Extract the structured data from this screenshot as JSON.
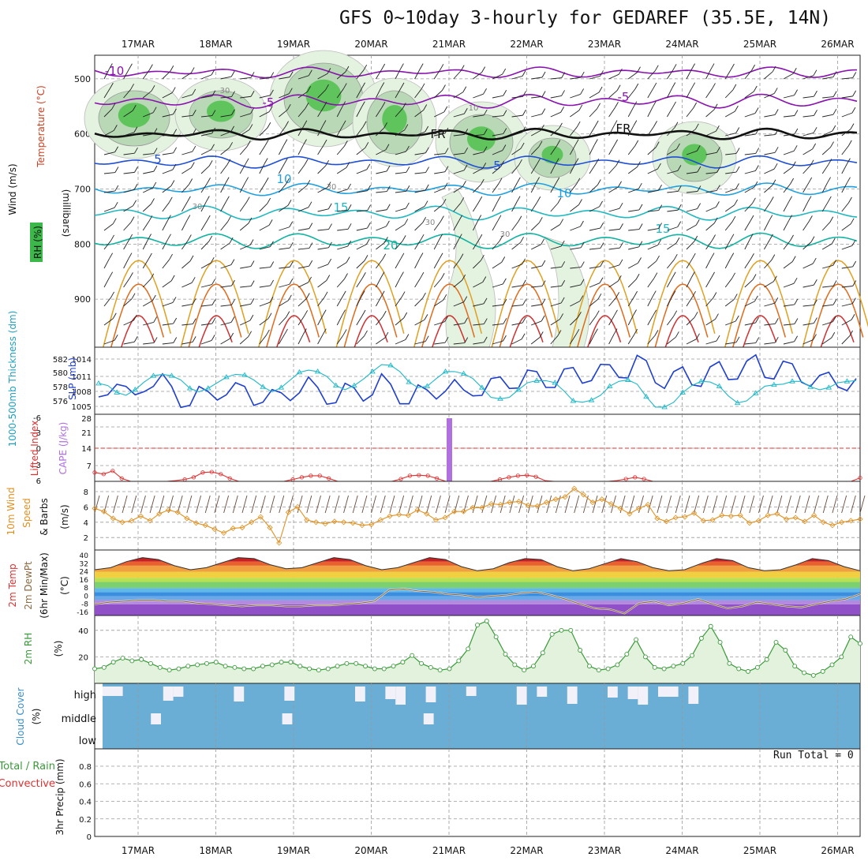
{
  "title": "GFS 0~10day 3-hourly for GEDAREF (35.5E, 14N)",
  "run_total_label": "Run Total = 0",
  "colors": {
    "temp_cold": "#8a12b0",
    "temp_mid": "#1f4fd6",
    "temp_warm": "#0fb3a0",
    "temp_hot": "#e0561a",
    "slp": "#1f3fd0",
    "thk": "#20b8c8",
    "cape": "#b070e0",
    "li": "#e03030",
    "wind": "#e09020",
    "dew": "#8a6a40",
    "rh": "#3a9a3a",
    "cloud": "#6aaed6",
    "precip": "#3a9a3a"
  },
  "chart_data": [
    {
      "type": "heatmap",
      "panel": "upper-air",
      "title": "GFS 0~10day 3-hourly for GEDAREF (35.5E, 14N)",
      "x": [
        "17MAR",
        "18MAR",
        "19MAR",
        "20MAR",
        "21MAR",
        "22MAR",
        "23MAR",
        "24MAR",
        "25MAR",
        "26MAR"
      ],
      "ylabel": "(millibars)",
      "side_labels": [
        "Wind (m/s)",
        "Temperature (°C)",
        "RH (%)"
      ],
      "y_ticks": [
        "500",
        "600",
        "700",
        "800",
        "900"
      ],
      "ylim": [
        980,
        450
      ],
      "isotherm_labels": [
        "-10",
        "-5",
        "-5",
        "FR",
        "FR",
        "5",
        "5",
        "10",
        "10",
        "15",
        "15",
        "20"
      ],
      "rh_labels": [
        "30",
        "30",
        "30",
        "30",
        "30",
        "10"
      ]
    },
    {
      "type": "line",
      "panel": "slp-thickness",
      "ylabel_left": "1000-500mb Thickness (dm)",
      "ylabel_right": "SLP (mb)",
      "left_ticks": [
        "582",
        "580",
        "578",
        "576"
      ],
      "right_ticks": [
        "1014",
        "1011",
        "1008",
        "1005"
      ],
      "ylim_slp": [
        1003.5,
        1016
      ],
      "series": [
        {
          "name": "SLP (mb)",
          "values": [
            1006.8,
            1007.2,
            1009.2,
            1008.8,
            1007.2,
            1007.8,
            1008.8,
            1011.2,
            1008.8,
            1004.8,
            1005.2,
            1008.8,
            1007.8,
            1006.2,
            1007.2,
            1009.5,
            1008.8,
            1005.2,
            1005.8,
            1008.2,
            1007.6,
            1006.1,
            1007.6,
            1010.6,
            1008.6,
            1005.4,
            1005.7,
            1009.4,
            1008.5,
            1006.0,
            1007.2,
            1011.2,
            1009.2,
            1005.5,
            1005.5,
            1009.1,
            1008.1,
            1006.4,
            1007.9,
            1010.1,
            1008.1,
            1007.0,
            1007.1,
            1010.3,
            1010.6,
            1008.4,
            1008.5,
            1011.9,
            1011.6,
            1008.6,
            1008.6,
            1012.1,
            1012.4,
            1009.4,
            1009.9,
            1013.0,
            1012.9,
            1010.5,
            1010.4,
            1014.7,
            1013.7,
            1009.5,
            1008.4,
            1011.6,
            1012.5,
            1009.1,
            1008.8,
            1012.5,
            1013.5,
            1010.1,
            1010.2,
            1013.6,
            1014.8,
            1010.5,
            1010.2,
            1013.6,
            1013.1,
            1009.6,
            1008.8,
            1010.9,
            1011.5,
            1008.7,
            1008.0,
            1010.3
          ]
        },
        {
          "name": "Thickness (dm)",
          "values": [
            578.5,
            578.2,
            577.2,
            576.8,
            577.6,
            578.7,
            579.6,
            579.8,
            579.6,
            579.0,
            577.8,
            577.3,
            577.8,
            578.6,
            579.4,
            579.8,
            579.7,
            579.0,
            578.0,
            577.3,
            577.9,
            579.0,
            580.1,
            580.4,
            580.2,
            579.5,
            578.2,
            577.6,
            578.2,
            579.1,
            580.2,
            581.2,
            581.1,
            580.2,
            578.7,
            577.9,
            578.1,
            579.2,
            580.2,
            580.2,
            579.9,
            579.2,
            577.9,
            576.5,
            576.3,
            576.5,
            577.6,
            578.6,
            578.9,
            578.9,
            578.6,
            577.4,
            576.0,
            575.8,
            576.1,
            576.8,
            578.1,
            578.8,
            579.0,
            578.4,
            576.6,
            575.1,
            575.1,
            575.8,
            577.2,
            578.2,
            578.8,
            578.7,
            578.1,
            576.7,
            575.7,
            576.0,
            577.1,
            578.1,
            578.3,
            578.4,
            578.8,
            578.8,
            578.0,
            577.6,
            577.9,
            578.6,
            578.8,
            578.9
          ]
        }
      ]
    },
    {
      "type": "bar",
      "panel": "cape-li",
      "ylabel_left": "Lifted Index",
      "ylabel_right": "CAPE (J/kg)",
      "li_ticks": [
        "-6",
        "-3",
        "0",
        "3",
        "6"
      ],
      "cape_ticks": [
        "28",
        "21",
        "14",
        "7"
      ],
      "cape_bar": {
        "x_day": 4.0,
        "value": 28
      },
      "li_series": [
        4.5,
        4.8,
        4.2,
        5.6,
        6.2,
        6.8,
        7,
        7,
        6.6,
        6.0,
        5.8,
        5.4,
        4.5,
        4.4,
        4.8,
        5.6,
        6.3,
        6.8,
        7,
        7,
        6.8,
        6.4,
        5.8,
        5.4,
        5.1,
        5.1,
        5.6,
        6.2,
        6.6,
        7,
        7,
        7,
        6.8,
        6.2,
        5.7,
        5.1,
        5.0,
        5.1,
        5.6,
        6.3,
        6.8,
        7,
        7,
        6.8,
        6.4,
        5.8,
        5.4,
        5.1,
        5.0,
        5.3,
        6.0,
        6.6,
        7,
        7,
        7,
        7,
        6.8,
        6.4,
        6.0,
        5.7,
        5.4,
        5.7,
        6.2,
        6.8,
        7,
        7,
        7,
        7,
        7,
        7,
        7,
        7,
        7,
        7,
        7,
        7,
        7,
        7,
        7,
        7,
        7,
        7,
        7,
        7,
        6.2,
        5.5
      ]
    },
    {
      "type": "line",
      "panel": "wind10m",
      "ylabel": "10m Wind Speed & Barbs (m/s)",
      "ticks": [
        "8",
        "6",
        "4",
        "2"
      ],
      "ylim": [
        0,
        9
      ],
      "values": [
        5.8,
        5.4,
        4.5,
        4.0,
        4.2,
        4.8,
        4.2,
        5.1,
        5.6,
        5.3,
        4.5,
        3.9,
        3.6,
        3.1,
        2.6,
        3.2,
        3.3,
        4.0,
        4.7,
        3.3,
        1.3,
        5.3,
        6.0,
        4.3,
        4.0,
        3.8,
        4.1,
        4.0,
        3.9,
        3.6,
        3.7,
        4.3,
        4.8,
        5.0,
        4.9,
        5.6,
        5.1,
        4.3,
        4.6,
        5.4,
        5.4,
        5.9,
        5.9,
        6.4,
        6.3,
        6.6,
        6.7,
        6.2,
        6.1,
        6.6,
        7.0,
        7.3,
        8.4,
        7.6,
        6.6,
        7.0,
        6.4,
        5.8,
        5.1,
        5.8,
        6.3,
        4.5,
        4.1,
        4.6,
        4.7,
        5.2,
        4.2,
        4.3,
        4.9,
        4.8,
        4.9,
        3.9,
        4.2,
        4.9,
        5.1,
        4.4,
        4.6,
        4.1,
        4.9,
        4.0,
        3.6,
        4.0,
        4.2,
        4.4
      ]
    },
    {
      "type": "area",
      "panel": "t2m",
      "ylabel": "2m Temp 2m DewPt (6hr Min/Max) (°C)",
      "ticks": [
        "40",
        "32",
        "24",
        "16",
        "8",
        "0",
        "-8",
        "-16"
      ],
      "ylim": [
        -20,
        42
      ],
      "temp": [
        26,
        28,
        34,
        38,
        36,
        30,
        26,
        28,
        33,
        38,
        37,
        31,
        27,
        28,
        33,
        38,
        36,
        30,
        26,
        28,
        33,
        38,
        36,
        29,
        25,
        27,
        33,
        37,
        36,
        29,
        25,
        27,
        32,
        37,
        34,
        28,
        25,
        26,
        32,
        37,
        35,
        28,
        25,
        26,
        31,
        37,
        35,
        29,
        25
      ],
      "dew": [
        -8,
        -6,
        -5,
        -4,
        -4,
        -5,
        -5,
        -7,
        -8,
        -9,
        -10,
        -9,
        -9,
        -10,
        -10,
        -9,
        -9,
        -8,
        -7,
        -5,
        6,
        7,
        5,
        4,
        2,
        1,
        -1,
        0,
        1,
        3,
        4,
        1,
        -3,
        -8,
        -12,
        -13,
        -17,
        -7,
        -5,
        -9,
        -7,
        -3,
        -8,
        -12,
        -10,
        -6,
        -8,
        -10,
        -11,
        -8,
        -5,
        -3,
        2
      ]
    },
    {
      "type": "area",
      "panel": "rh2m",
      "ylabel": "2m RH (%)",
      "ticks": [
        "40",
        "20"
      ],
      "ylim": [
        0,
        50
      ],
      "values": [
        11,
        12,
        16,
        19,
        17,
        18,
        15,
        12,
        10,
        11,
        13,
        14,
        15,
        16,
        13,
        12,
        11,
        11,
        13,
        14,
        16,
        16,
        13,
        11,
        10,
        11,
        13,
        15,
        15,
        13,
        11,
        11,
        13,
        16,
        21,
        15,
        12,
        10,
        11,
        17,
        26,
        44,
        47,
        35,
        22,
        14,
        10,
        13,
        23,
        37,
        40,
        40,
        25,
        13,
        10,
        11,
        14,
        22,
        33,
        20,
        12,
        11,
        13,
        15,
        21,
        34,
        43,
        31,
        15,
        11,
        9,
        12,
        18,
        31,
        25,
        13,
        8,
        6,
        9,
        14,
        20,
        35,
        30
      ]
    },
    {
      "type": "bar",
      "panel": "cloud",
      "ylabel": "Cloud Cover (%)",
      "levels": [
        "high",
        "middle",
        "low"
      ],
      "high_gaps": [
        [
          0,
          2
        ],
        [
          6,
          1
        ],
        [
          7,
          1
        ],
        [
          13,
          1
        ],
        [
          18,
          1
        ],
        [
          25,
          1
        ],
        [
          28,
          1
        ],
        [
          29,
          1
        ],
        [
          32,
          1
        ],
        [
          36,
          1
        ],
        [
          41,
          1
        ],
        [
          43,
          1
        ],
        [
          46,
          1
        ],
        [
          50,
          1
        ],
        [
          52,
          1
        ],
        [
          53,
          1
        ],
        [
          55,
          2
        ],
        [
          58,
          1
        ]
      ],
      "middle_gaps": [
        [
          4,
          1
        ],
        [
          17,
          1
        ],
        [
          31,
          1
        ]
      ]
    },
    {
      "type": "bar",
      "panel": "precip",
      "ylabel": "3hr Precip (mm)",
      "side_labels": [
        "Total / Rain",
        "Convective"
      ],
      "ticks": [
        "0.8",
        "0.6",
        "0.4",
        "0.2",
        "0"
      ],
      "ylim": [
        0,
        1
      ],
      "values": [
        0,
        0,
        0,
        0,
        0,
        0,
        0,
        0,
        0,
        0
      ]
    }
  ]
}
